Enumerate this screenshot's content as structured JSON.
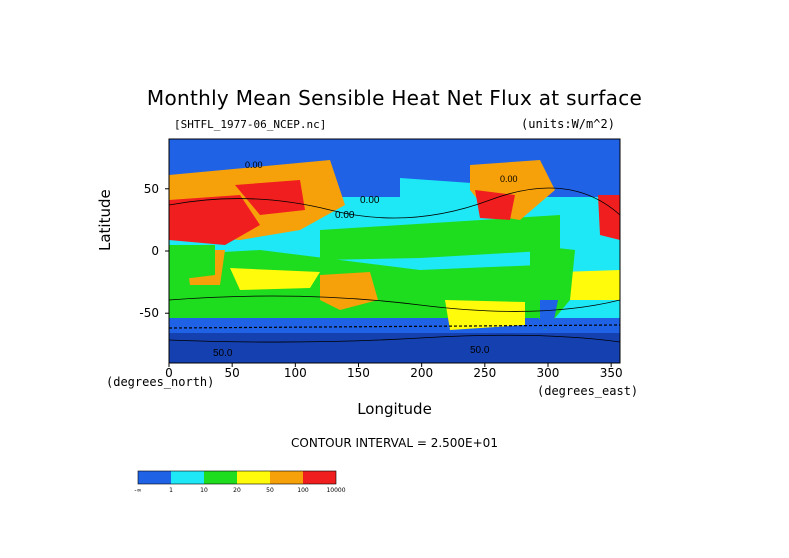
{
  "chart_data": {
    "type": "heatmap",
    "title": "Monthly Mean Sensible Heat Net Flux at surface",
    "dataset_label": "[SHTFL_1977-06_NCEP.nc]",
    "units_label": "(units:W/m^2)",
    "xlabel": "Longitude",
    "ylabel": "Latitude",
    "x_unit": "(degrees_north)",
    "x_unit_east": "(degrees_east)",
    "xlim": [
      0,
      357
    ],
    "ylim": [
      -90,
      90
    ],
    "x_ticks": [
      "0",
      "50",
      "100",
      "150",
      "200",
      "250",
      "300",
      "350"
    ],
    "x_tick_values": [
      0,
      50,
      100,
      150,
      200,
      250,
      300,
      350
    ],
    "y_ticks": [
      "50",
      "0",
      "-50"
    ],
    "y_tick_values": [
      50,
      0,
      -50
    ],
    "contour_interval": "CONTOUR INTERVAL = 2.500E+01",
    "contour_labels": [
      "0.00",
      "0.00",
      "50.0",
      "50.0",
      "0.00",
      "0.00"
    ],
    "colorbar": {
      "colors": [
        "#1f62e6",
        "#1ee8f5",
        "#1edc1e",
        "#fffb0a",
        "#f7a10a",
        "#f01e1e"
      ],
      "tick_labels": [
        "-∞",
        "1",
        "10",
        "20",
        "50",
        "100",
        "10000"
      ],
      "tick_values": [
        null,
        1,
        10,
        20,
        50,
        100,
        10000
      ]
    }
  }
}
